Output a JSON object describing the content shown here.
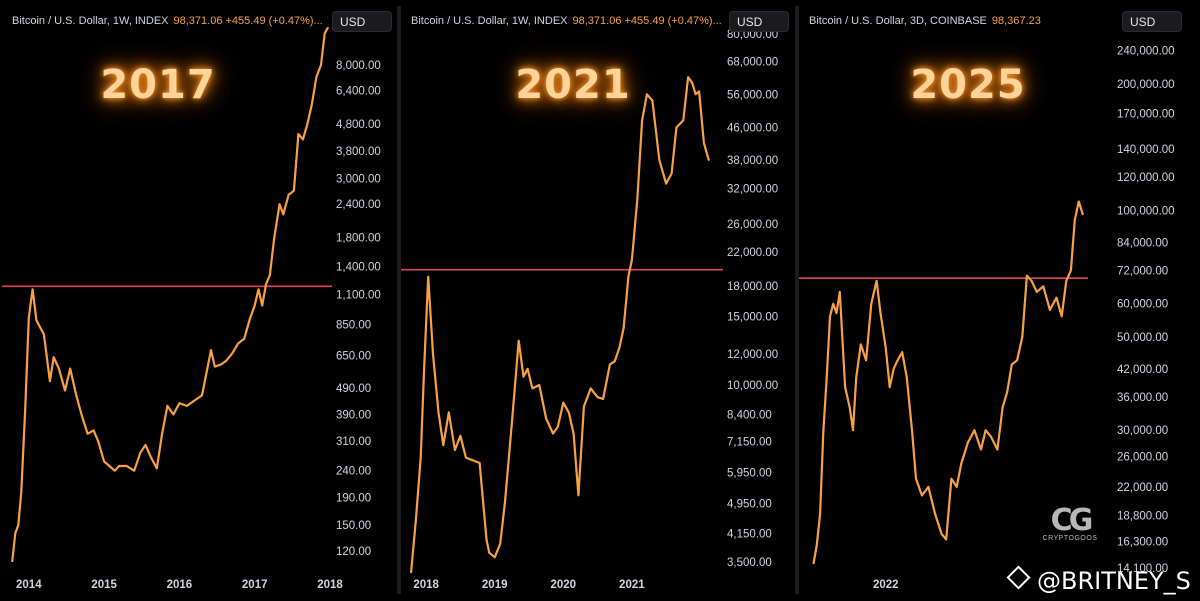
{
  "chart_data": [
    {
      "type": "line",
      "title": "Bitcoin / U.S. Dollar, 1W, INDEX",
      "header_price": "98,371.06 +455.49 (+0.47%)...",
      "currency": "USD",
      "overlay_label": "2017",
      "yscale": "log",
      "ylim": [
        100,
        11000
      ],
      "y_ticks": [
        "8,000.00",
        "6,400.00",
        "4,800.00",
        "3,800.00",
        "3,000.00",
        "2,400.00",
        "1,800.00",
        "1,400.00",
        "1,100.00",
        "850.00",
        "650.00",
        "490.00",
        "390.00",
        "310.00",
        "240.00",
        "190.00",
        "150.00",
        "120.00"
      ],
      "x_ticks": [
        "2014",
        "2015",
        "2016",
        "2017",
        "2018"
      ],
      "xlim": [
        2013.75,
        2018.0
      ],
      "resistance_level": 1180,
      "series_color": "#f7a046",
      "resistance_color": "#e0445a",
      "x": [
        2013.78,
        2013.82,
        2013.86,
        2013.9,
        2013.95,
        2014.0,
        2014.05,
        2014.1,
        2014.2,
        2014.28,
        2014.33,
        2014.4,
        2014.48,
        2014.55,
        2014.63,
        2014.7,
        2014.78,
        2014.86,
        2014.92,
        2015.0,
        2015.07,
        2015.14,
        2015.2,
        2015.3,
        2015.4,
        2015.48,
        2015.55,
        2015.62,
        2015.7,
        2015.77,
        2015.84,
        2015.92,
        2016.0,
        2016.1,
        2016.2,
        2016.3,
        2016.42,
        2016.47,
        2016.55,
        2016.62,
        2016.7,
        2016.78,
        2016.86,
        2016.94,
        2017.0,
        2017.05,
        2017.1,
        2017.15,
        2017.2,
        2017.26,
        2017.33,
        2017.38,
        2017.45,
        2017.52,
        2017.58,
        2017.64,
        2017.7,
        2017.76,
        2017.82,
        2017.88,
        2017.93,
        2017.97
      ],
      "y": [
        110,
        140,
        150,
        200,
        400,
        900,
        1150,
        880,
        780,
        520,
        640,
        580,
        480,
        580,
        460,
        390,
        330,
        340,
        310,
        260,
        250,
        240,
        250,
        250,
        240,
        280,
        300,
        270,
        245,
        330,
        420,
        390,
        430,
        420,
        440,
        460,
        680,
        590,
        600,
        620,
        660,
        720,
        750,
        900,
        1000,
        1150,
        1000,
        1200,
        1300,
        1800,
        2400,
        2200,
        2600,
        2700,
        4400,
        4200,
        4800,
        5700,
        7200,
        8000,
        10500,
        11000
      ]
    },
    {
      "type": "line",
      "title": "Bitcoin / U.S. Dollar, 1W, INDEX",
      "header_price": "98,371.06 +455.49 (+0.47%)...",
      "currency": "USD",
      "overlay_label": "2021",
      "yscale": "log",
      "ylim": [
        3300,
        82000
      ],
      "y_ticks": [
        "80,000.00",
        "68,000.00",
        "56,000.00",
        "46,000.00",
        "38,000.00",
        "32,000.00",
        "26,000.00",
        "22,000.00",
        "18,000.00",
        "15,000.00",
        "12,000.00",
        "10,000.00",
        "8,400.00",
        "7,150.00",
        "5,950.00",
        "4,950.00",
        "4,150.00",
        "3,500.00"
      ],
      "x_ticks": [
        "2018",
        "2019",
        "2020",
        "2021"
      ],
      "xlim": [
        2017.75,
        2022.3
      ],
      "resistance_level": 19800,
      "series_color": "#f7a046",
      "resistance_color": "#e0445a",
      "x": [
        2017.78,
        2017.85,
        2017.92,
        2017.97,
        2018.03,
        2018.1,
        2018.18,
        2018.25,
        2018.33,
        2018.42,
        2018.5,
        2018.58,
        2018.68,
        2018.78,
        2018.88,
        2018.92,
        2019.0,
        2019.08,
        2019.15,
        2019.25,
        2019.35,
        2019.42,
        2019.48,
        2019.55,
        2019.65,
        2019.75,
        2019.85,
        2019.92,
        2020.0,
        2020.08,
        2020.15,
        2020.22,
        2020.3,
        2020.4,
        2020.5,
        2020.58,
        2020.68,
        2020.75,
        2020.82,
        2020.88,
        2020.95,
        2021.0,
        2021.08,
        2021.15,
        2021.22,
        2021.3,
        2021.4,
        2021.5,
        2021.58,
        2021.65,
        2021.75,
        2021.82,
        2021.88,
        2021.93,
        2021.98,
        2022.05,
        2022.12
      ],
      "y": [
        3300,
        4500,
        6500,
        11000,
        19000,
        12000,
        8500,
        7000,
        8500,
        6800,
        7400,
        6500,
        6400,
        6300,
        4000,
        3700,
        3600,
        3900,
        5000,
        8000,
        13000,
        10500,
        11000,
        9800,
        10000,
        8200,
        7500,
        7800,
        9000,
        8500,
        7500,
        5200,
        8800,
        9800,
        9300,
        9200,
        11300,
        11500,
        12500,
        14000,
        19000,
        21000,
        30000,
        48000,
        56000,
        54000,
        38000,
        33000,
        35000,
        46000,
        48000,
        62000,
        60000,
        56000,
        57000,
        42000,
        38000
      ]
    },
    {
      "type": "line",
      "title": "Bitcoin / U.S. Dollar, 3D, COINBASE",
      "header_price": "98,367.23",
      "currency": "USD",
      "overlay_label": "2025",
      "yscale": "log",
      "ylim": [
        13800,
        260000
      ],
      "y_ticks": [
        "240,000.00",
        "200,000.00",
        "170,000.00",
        "140,000.00",
        "120,000.00",
        "100,000.00",
        "84,000.00",
        "72,000.00",
        "60,000.00",
        "50,000.00",
        "42,000.00",
        "36,000.00",
        "30,000.00",
        "26,000.00",
        "22,000.00",
        "18,800.00",
        "16,300.00",
        "14,100.00"
      ],
      "x_ticks": [
        "2022"
      ],
      "xlim": [
        2020.8,
        2025.05
      ],
      "resistance_level": 69000,
      "series_color": "#f7a046",
      "resistance_color": "#e0445a",
      "x": [
        2020.9,
        2020.95,
        2021.0,
        2021.05,
        2021.1,
        2021.15,
        2021.2,
        2021.25,
        2021.3,
        2021.38,
        2021.45,
        2021.5,
        2021.55,
        2021.62,
        2021.7,
        2021.78,
        2021.86,
        2021.92,
        2022.0,
        2022.06,
        2022.12,
        2022.18,
        2022.25,
        2022.32,
        2022.4,
        2022.46,
        2022.55,
        2022.65,
        2022.75,
        2022.85,
        2022.92,
        2023.0,
        2023.08,
        2023.15,
        2023.25,
        2023.35,
        2023.45,
        2023.52,
        2023.6,
        2023.7,
        2023.78,
        2023.85,
        2023.92,
        2024.0,
        2024.08,
        2024.15,
        2024.22,
        2024.3,
        2024.4,
        2024.5,
        2024.6,
        2024.68,
        2024.75,
        2024.82,
        2024.88,
        2024.94,
        2025.0
      ],
      "y": [
        14500,
        16000,
        19000,
        30000,
        40000,
        56000,
        60000,
        57000,
        64000,
        38000,
        34000,
        30000,
        40000,
        48000,
        44000,
        60000,
        68000,
        57000,
        47000,
        38000,
        42000,
        44000,
        46000,
        40000,
        30000,
        23000,
        21000,
        22000,
        19000,
        17000,
        16500,
        23000,
        22000,
        25000,
        28000,
        30000,
        27000,
        30000,
        29000,
        27000,
        34000,
        37000,
        43000,
        44000,
        50000,
        70000,
        68000,
        64000,
        66000,
        58000,
        62000,
        56000,
        68000,
        72000,
        95000,
        105000,
        98000
      ]
    }
  ],
  "watermark": {
    "logo_mark": "CG",
    "logo_name": "CRYPTOGOOS",
    "handle": "@BRITNEY_S"
  }
}
